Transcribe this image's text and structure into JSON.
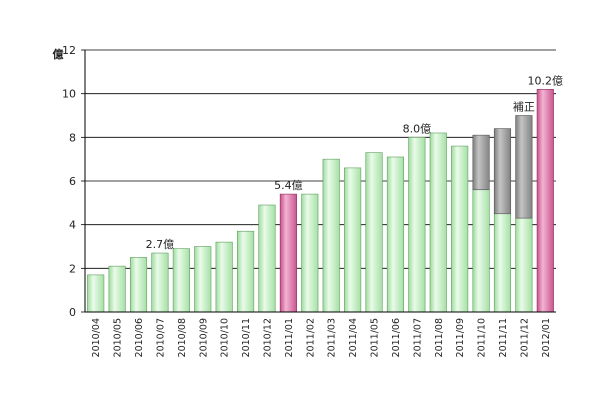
{
  "chart_data": {
    "type": "bar",
    "ylabel": "億",
    "ylim": [
      0,
      12
    ],
    "yticks": [
      "0",
      "2",
      "4",
      "6",
      "8",
      "10",
      "12"
    ],
    "grid": true,
    "categories": [
      "2010/04",
      "2010/05",
      "2010/06",
      "2010/07",
      "2010/08",
      "2010/09",
      "2010/10",
      "2010/11",
      "2010/12",
      "2011/01",
      "2011/02",
      "2011/03",
      "2011/04",
      "2011/05",
      "2011/06",
      "2011/07",
      "2011/08",
      "2011/09",
      "2011/10",
      "2011/11",
      "2011/12",
      "2012/01"
    ],
    "series": [
      {
        "values": [
          1.7,
          2.1,
          2.5,
          2.7,
          2.9,
          3.0,
          3.2,
          3.7,
          4.9,
          5.4,
          5.4,
          7.0,
          6.6,
          7.3,
          7.1,
          8.0,
          8.2,
          7.6,
          5.6,
          4.5,
          4.3,
          10.2
        ]
      },
      {
        "values": [
          0,
          0,
          0,
          0,
          0,
          0,
          0,
          0,
          0,
          0,
          0,
          0,
          0,
          0,
          0,
          0,
          0,
          0,
          2.5,
          3.9,
          4.7,
          0
        ]
      }
    ],
    "highlighted": [
      "2011/01",
      "2012/01"
    ],
    "colors": {
      "normal": "#b8ecb8",
      "highlight": "#d9679e",
      "correction": "#9a9a9a",
      "grid": "#000000"
    },
    "annotations": [
      {
        "category": "2010/07",
        "text": "2.7億"
      },
      {
        "category": "2011/01",
        "text": "5.4億"
      },
      {
        "category": "2011/07",
        "text": "8.0億"
      },
      {
        "category": "2011/12",
        "text": "補正"
      },
      {
        "category": "2012/01",
        "text": "10.2億"
      }
    ]
  }
}
